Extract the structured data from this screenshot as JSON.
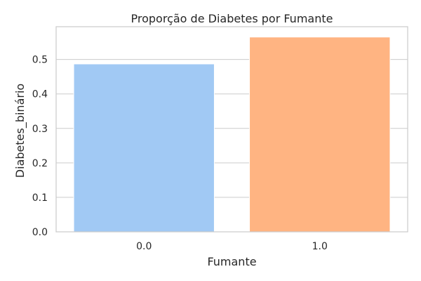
{
  "chart_data": {
    "type": "bar",
    "title": "Proporção de Diabetes por Fumante",
    "xlabel": "Fumante",
    "ylabel": "Diabetes_binário",
    "categories": [
      "0.0",
      "1.0"
    ],
    "values": [
      0.487,
      0.565
    ],
    "colors": [
      "#a1c9f4",
      "#ffb482"
    ],
    "ylim": [
      0,
      0.595
    ],
    "yticks": [
      "0.0",
      "0.1",
      "0.2",
      "0.3",
      "0.4",
      "0.5"
    ],
    "ytick_values": [
      0,
      0.1,
      0.2,
      0.3,
      0.4,
      0.5
    ],
    "grid": "horizontal",
    "legend": "none"
  }
}
